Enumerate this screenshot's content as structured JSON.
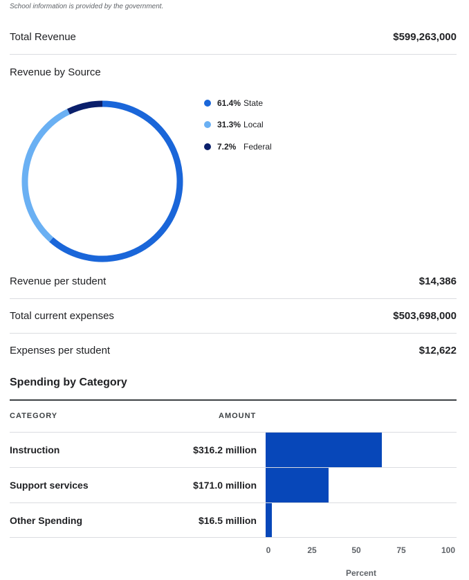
{
  "note": "School information is provided by the government.",
  "summary": {
    "total_revenue_label": "Total Revenue",
    "total_revenue_value": "$599,263,000",
    "revenue_by_source_label": "Revenue by Source",
    "revenue_per_student_label": "Revenue per student",
    "revenue_per_student_value": "$14,386",
    "total_expenses_label": "Total current expenses",
    "total_expenses_value": "$503,698,000",
    "expenses_per_student_label": "Expenses per student",
    "expenses_per_student_value": "$12,622"
  },
  "revenue_chart": {
    "type": "pie",
    "slices": [
      {
        "label": "State",
        "pct_label": "61.4%",
        "value": 61.4,
        "color": "#1a66d9"
      },
      {
        "label": "Local",
        "pct_label": "31.3%",
        "value": 31.3,
        "color": "#6ab0f3"
      },
      {
        "label": "Federal",
        "pct_label": "7.2%",
        "value": 7.2,
        "color": "#0a1f6b"
      }
    ]
  },
  "spending": {
    "heading": "Spending by Category",
    "col_category": "CATEGORY",
    "col_amount": "AMOUNT",
    "rows": [
      {
        "category": "Instruction",
        "amount": "$316.2 million"
      },
      {
        "category": "Support services",
        "amount": "$171.0 million"
      },
      {
        "category": "Other Spending",
        "amount": "$16.5 million"
      }
    ]
  },
  "chart_data": {
    "type": "bar",
    "categories": [
      "Instruction",
      "Support services",
      "Other Spending"
    ],
    "values": [
      62.8,
      34.0,
      3.3
    ],
    "xlabel": "Percent",
    "xlim": [
      0,
      100
    ],
    "ticks": [
      "0",
      "25",
      "50",
      "75",
      "100"
    ],
    "color": "#0747b9"
  }
}
